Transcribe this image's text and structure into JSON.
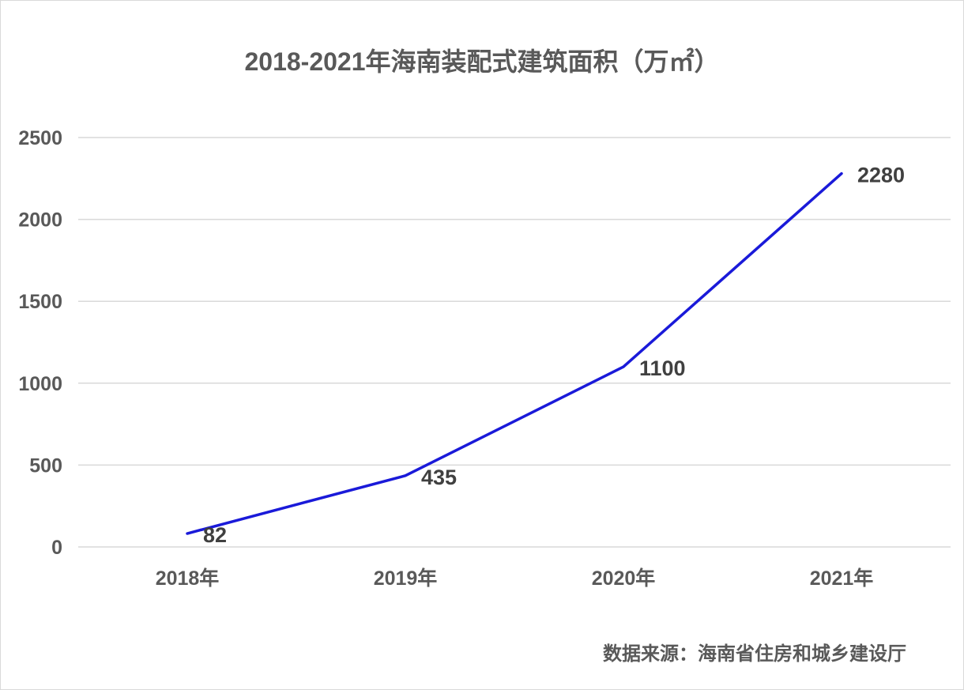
{
  "chart_data": {
    "type": "line",
    "title": "2018-2021年海南装配式建筑面积（万㎡）",
    "xlabel": "",
    "ylabel": "",
    "categories": [
      "2018年",
      "2019年",
      "2020年",
      "2021年"
    ],
    "series": [
      {
        "values": [
          82,
          435,
          1100,
          2280
        ],
        "color": "#1a1ad9"
      }
    ],
    "data_labels": [
      "82",
      "435",
      "1100",
      "2280"
    ],
    "ylim": [
      0,
      2500
    ],
    "yticks": [
      0,
      500,
      1000,
      1500,
      2000,
      2500
    ],
    "grid": true,
    "legend": "none"
  },
  "source_note": "数据来源：海南省住房和城乡建设厅",
  "colors": {
    "line": "#1a1ad9",
    "grid": "#d9d9d9",
    "text": "#595959"
  }
}
